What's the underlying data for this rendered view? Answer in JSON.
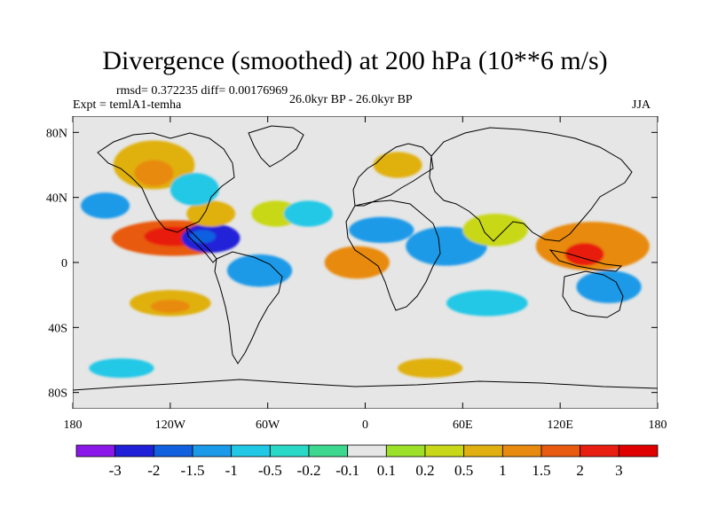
{
  "title": "Divergence (smoothed) at 200 hPa (10**6 m/s)",
  "stats": "rmsd= 0.372235  diff= 0.00176969",
  "experiment": "Expt = temlA1-temha",
  "period": "26.0kyr BP - 26.0kyr BP",
  "season": "JJA",
  "y_axis": {
    "ticks": [
      "80N",
      "40N",
      "0",
      "40S",
      "80S"
    ],
    "values": [
      80,
      40,
      0,
      -40,
      -80
    ]
  },
  "x_axis": {
    "ticks": [
      "180",
      "120W",
      "60W",
      "0",
      "60E",
      "120E",
      "180"
    ],
    "values": [
      -180,
      -120,
      -60,
      0,
      60,
      120,
      180
    ]
  },
  "colorbar": {
    "labels": [
      "-3",
      "-2",
      "-1.5",
      "-1",
      "-0.5",
      "-0.2",
      "-0.1",
      "0.1",
      "0.2",
      "0.5",
      "1",
      "1.5",
      "2",
      "3"
    ],
    "colors": [
      "#8a18e8",
      "#2020d8",
      "#1060e0",
      "#1a9ae8",
      "#20c8e6",
      "#2ad8c8",
      "#3cd890",
      "#e6e6e6",
      "#9ce028",
      "#c8d818",
      "#e0b010",
      "#e88a10",
      "#e85a10",
      "#e81e10",
      "#e00000"
    ]
  },
  "map_data": {
    "lon_range": [
      -180,
      180
    ],
    "lat_range": [
      -90,
      90
    ],
    "anomalies": [
      {
        "lon": -118,
        "lat": 15,
        "rx": 38,
        "ry": 11,
        "color": "#e85a10"
      },
      {
        "lon": -118,
        "lat": 16,
        "rx": 18,
        "ry": 6,
        "color": "#e81e10"
      },
      {
        "lon": -95,
        "lat": 15,
        "rx": 18,
        "ry": 9,
        "color": "#2020d8"
      },
      {
        "lon": -100,
        "lat": 16,
        "rx": 8,
        "ry": 4,
        "color": "#1060e0"
      },
      {
        "lon": -130,
        "lat": 60,
        "rx": 25,
        "ry": 15,
        "color": "#e0b010"
      },
      {
        "lon": -130,
        "lat": 55,
        "rx": 12,
        "ry": 8,
        "color": "#e88a10"
      },
      {
        "lon": -95,
        "lat": 30,
        "rx": 15,
        "ry": 8,
        "color": "#e0b010"
      },
      {
        "lon": -160,
        "lat": 35,
        "rx": 15,
        "ry": 8,
        "color": "#1a9ae8"
      },
      {
        "lon": -105,
        "lat": 45,
        "rx": 15,
        "ry": 10,
        "color": "#20c8e6"
      },
      {
        "lon": -120,
        "lat": -25,
        "rx": 25,
        "ry": 8,
        "color": "#e0b010"
      },
      {
        "lon": -120,
        "lat": -27,
        "rx": 12,
        "ry": 4,
        "color": "#e88a10"
      },
      {
        "lon": -65,
        "lat": -5,
        "rx": 20,
        "ry": 10,
        "color": "#1a9ae8"
      },
      {
        "lon": -55,
        "lat": 30,
        "rx": 15,
        "ry": 8,
        "color": "#c8d818"
      },
      {
        "lon": -35,
        "lat": 30,
        "rx": 15,
        "ry": 8,
        "color": "#20c8e6"
      },
      {
        "lon": -5,
        "lat": 0,
        "rx": 20,
        "ry": 10,
        "color": "#e88a10"
      },
      {
        "lon": 20,
        "lat": 60,
        "rx": 15,
        "ry": 8,
        "color": "#e0b010"
      },
      {
        "lon": 10,
        "lat": 20,
        "rx": 20,
        "ry": 8,
        "color": "#1a9ae8"
      },
      {
        "lon": 50,
        "lat": 10,
        "rx": 25,
        "ry": 12,
        "color": "#1a9ae8"
      },
      {
        "lon": 80,
        "lat": 20,
        "rx": 20,
        "ry": 10,
        "color": "#c8d818"
      },
      {
        "lon": 140,
        "lat": 10,
        "rx": 35,
        "ry": 15,
        "color": "#e88a10"
      },
      {
        "lon": 135,
        "lat": 5,
        "rx": 12,
        "ry": 7,
        "color": "#e81e10"
      },
      {
        "lon": 75,
        "lat": -25,
        "rx": 25,
        "ry": 8,
        "color": "#20c8e6"
      },
      {
        "lon": 150,
        "lat": -15,
        "rx": 20,
        "ry": 10,
        "color": "#1a9ae8"
      },
      {
        "lon": -150,
        "lat": -65,
        "rx": 20,
        "ry": 6,
        "color": "#20c8e6"
      },
      {
        "lon": 40,
        "lat": -65,
        "rx": 20,
        "ry": 6,
        "color": "#e0b010"
      }
    ]
  }
}
